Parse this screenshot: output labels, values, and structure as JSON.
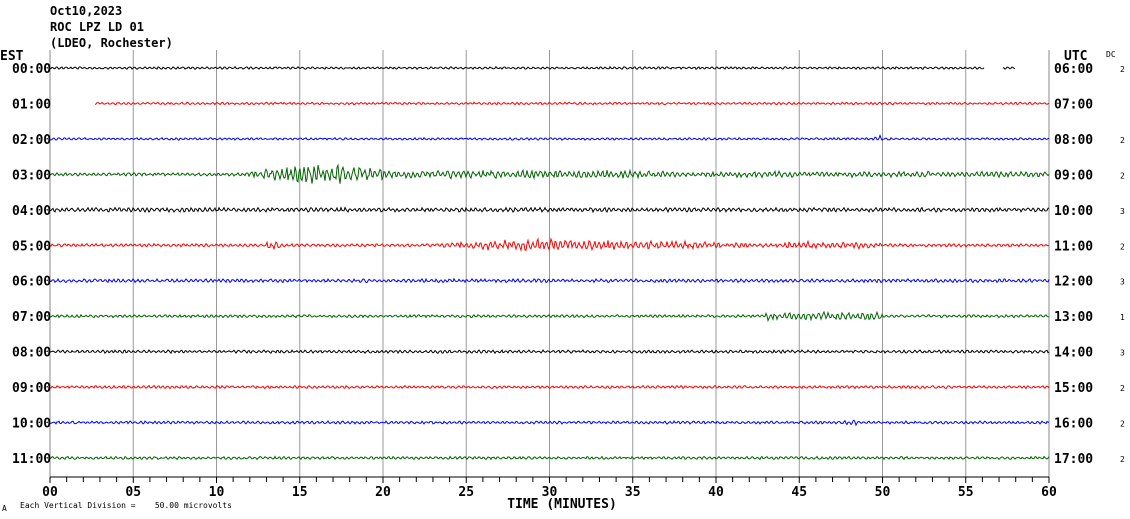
{
  "header": {
    "date": "Oct10,2023",
    "station": "ROC LPZ LD 01",
    "network": "(LDEO, Rochester)"
  },
  "left_axis_title": "EST",
  "right_axis_title": "UTC",
  "dc_title": "DC",
  "footer": {
    "corner_mark": "A",
    "scale_note": "Each Vertical Division =    50.00 microvolts"
  },
  "chart_data": {
    "type": "line",
    "title": "ROC LPZ LD 01 helicorder, Oct10,2023",
    "xlabel": "TIME (MINUTES)",
    "xlim": [
      0,
      60
    ],
    "x_ticks": [
      "00",
      "05",
      "10",
      "15",
      "20",
      "25",
      "30",
      "35",
      "40",
      "45",
      "50",
      "55",
      "60"
    ],
    "grid": true,
    "colors": [
      "#000000",
      "#ff0000",
      "#0000ff",
      "#006400"
    ],
    "rows": [
      {
        "est": "00:00",
        "utc": "06:00",
        "dc": "2",
        "start_min": 0,
        "end_min": 58,
        "gap": [
          56.1,
          57.2
        ],
        "noise": 1.0,
        "events": []
      },
      {
        "est": "01:00",
        "utc": "07:00",
        "dc": "",
        "start_min": 2.7,
        "end_min": 60,
        "noise": 1.0,
        "events": []
      },
      {
        "est": "02:00",
        "utc": "08:00",
        "dc": "2",
        "start_min": 0,
        "end_min": 60,
        "noise": 1.0,
        "events": [
          {
            "from": 49.5,
            "to": 50,
            "amp": 3
          }
        ]
      },
      {
        "est": "03:00",
        "utc": "09:00",
        "dc": "2",
        "start_min": 0,
        "end_min": 60,
        "noise": 1.3,
        "events": [
          {
            "from": 10.8,
            "to": 21,
            "amp": 12,
            "peak": 16
          },
          {
            "from": 21,
            "to": 36,
            "amp": 4
          },
          {
            "from": 34.5,
            "to": 35.5,
            "amp": 5
          },
          {
            "from": 36,
            "to": 60,
            "amp": 2.5
          }
        ]
      },
      {
        "est": "04:00",
        "utc": "10:00",
        "dc": "3",
        "start_min": 0,
        "end_min": 60,
        "noise": 1.8,
        "events": []
      },
      {
        "est": "05:00",
        "utc": "11:00",
        "dc": "2",
        "start_min": 0,
        "end_min": 60,
        "noise": 1.3,
        "events": [
          {
            "from": 13,
            "to": 14,
            "amp": 5
          },
          {
            "from": 20.5,
            "to": 44,
            "amp": 6,
            "peak": 29
          },
          {
            "from": 44,
            "to": 50,
            "amp": 3
          }
        ]
      },
      {
        "est": "06:00",
        "utc": "12:00",
        "dc": "3",
        "start_min": 0,
        "end_min": 60,
        "noise": 1.5,
        "events": []
      },
      {
        "est": "07:00",
        "utc": "13:00",
        "dc": "1",
        "start_min": 0,
        "end_min": 60,
        "noise": 1.2,
        "events": [
          {
            "from": 43,
            "to": 50,
            "amp": 3.5
          }
        ]
      },
      {
        "est": "08:00",
        "utc": "14:00",
        "dc": "3",
        "start_min": 0,
        "end_min": 60,
        "noise": 1.3,
        "events": []
      },
      {
        "est": "09:00",
        "utc": "15:00",
        "dc": "2",
        "start_min": 0,
        "end_min": 60,
        "noise": 1.2,
        "events": []
      },
      {
        "est": "10:00",
        "utc": "16:00",
        "dc": "2",
        "start_min": 0,
        "end_min": 60,
        "noise": 1.2,
        "events": [
          {
            "from": 47.5,
            "to": 48.5,
            "amp": 2.5
          }
        ]
      },
      {
        "est": "11:00",
        "utc": "17:00",
        "dc": "2",
        "start_min": 0,
        "end_min": 60,
        "noise": 1.2,
        "events": []
      }
    ]
  }
}
